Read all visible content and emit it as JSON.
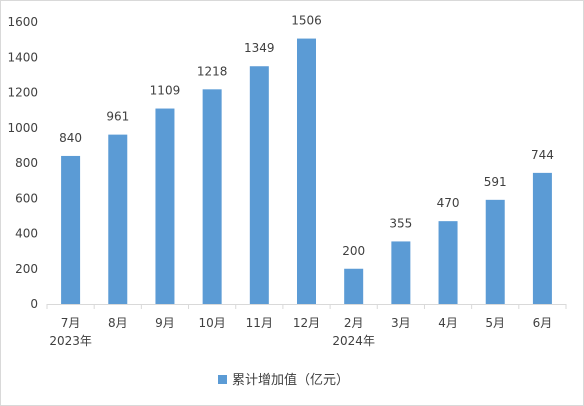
{
  "chart_data": {
    "type": "bar",
    "categories": [
      "7月",
      "8月",
      "9月",
      "10月",
      "11月",
      "12月",
      "2月",
      "3月",
      "4月",
      "5月",
      "6月"
    ],
    "year_labels": [
      "2023年",
      "",
      "",
      "",
      "",
      "",
      "2024年",
      "",
      "",
      "",
      ""
    ],
    "series": [
      {
        "name": "累计增加值（亿元）",
        "values": [
          840,
          961,
          1109,
          1218,
          1349,
          1506,
          200,
          355,
          470,
          591,
          744
        ]
      }
    ],
    "value_labels": [
      "840",
      "961",
      "1109",
      "1218",
      "1349",
      "1506",
      "200",
      "355",
      "470",
      "591",
      "744"
    ],
    "ylim": [
      0,
      1600
    ],
    "yticks": [
      0,
      200,
      400,
      600,
      800,
      1000,
      1200,
      1400,
      1600
    ],
    "ytick_labels": [
      "0",
      "200",
      "400",
      "600",
      "800",
      "1000",
      "1200",
      "1400",
      "1600"
    ],
    "grid": false,
    "legend_position": "bottom",
    "title": "",
    "xlabel": "",
    "ylabel": ""
  },
  "colors": {
    "bar": "#5b9bd5",
    "axis": "#d9d9d9",
    "text": "#404040"
  }
}
